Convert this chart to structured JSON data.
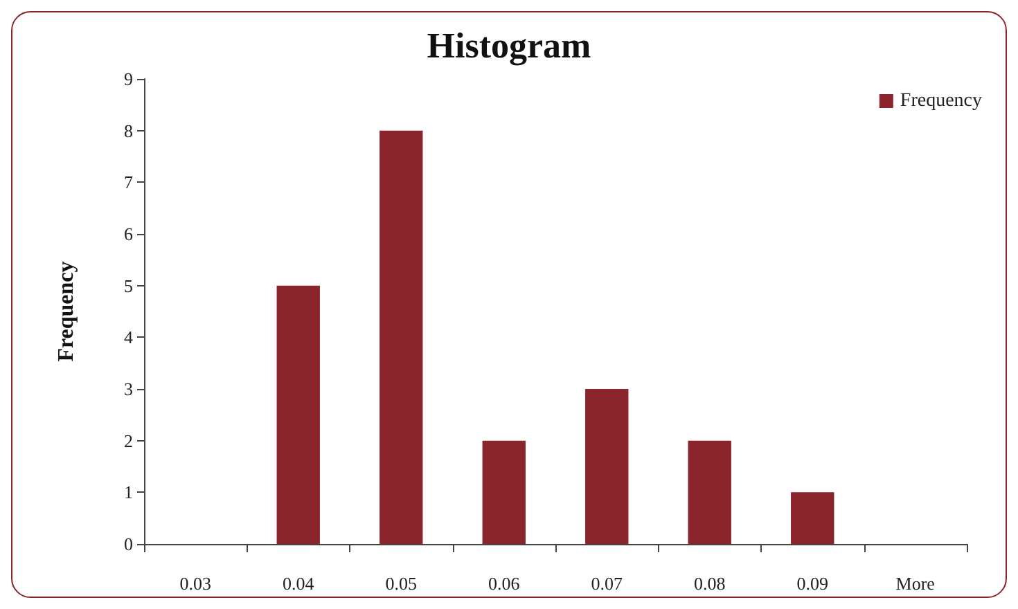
{
  "chart_data": {
    "type": "bar",
    "title": "Histogram",
    "ylabel": "Frequency",
    "categories": [
      "0.03",
      "0.04",
      "0.05",
      "0.06",
      "0.07",
      "0.08",
      "0.09",
      "More"
    ],
    "series": [
      {
        "name": "Frequency",
        "color": "#8b252c",
        "values": [
          0,
          5,
          8,
          2,
          3,
          2,
          1,
          0
        ]
      }
    ],
    "ylim": [
      0,
      9
    ],
    "yticks": [
      0,
      1,
      2,
      3,
      4,
      5,
      6,
      7,
      8,
      9
    ],
    "grid": false,
    "legend": "top right"
  }
}
